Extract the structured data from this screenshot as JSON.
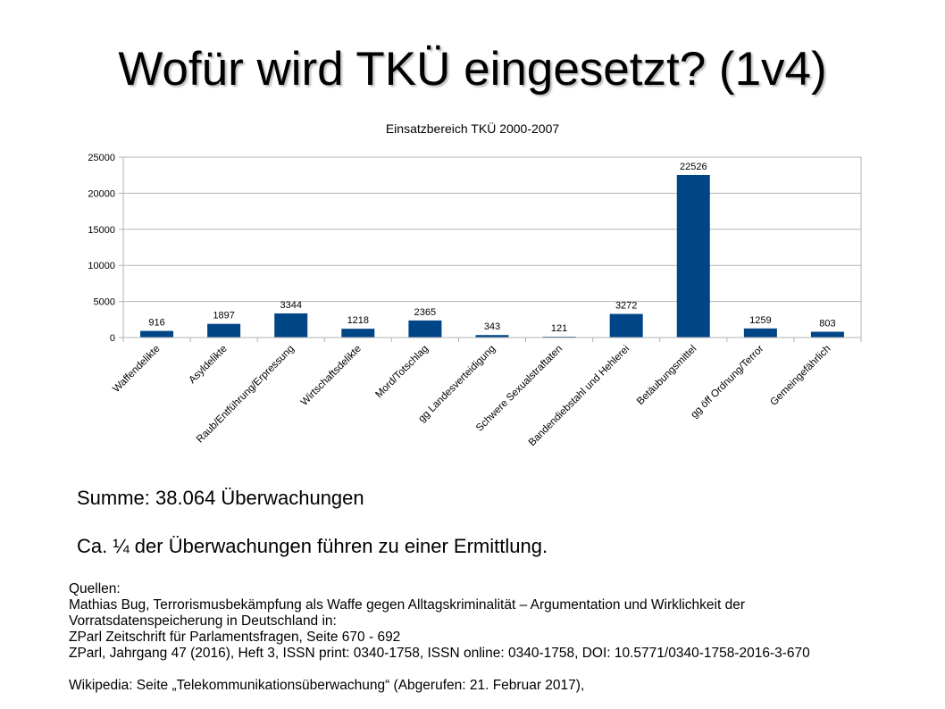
{
  "slide": {
    "title": "Wofür wird TKÜ eingesetzt? (1v4)",
    "summary": "Summe: 38.064 Überwachungen",
    "note": "Ca. ¼ der Überwachungen führen zu einer Ermittlung."
  },
  "sources": {
    "heading": "Quellen:",
    "lines": [
      "Mathias Bug, Terrorismusbekämpfung als Waffe gegen Alltagskriminalität – Argumentation und Wirklichkeit der",
      "Vorratsdatenspeicherung in Deutschland in:",
      "ZParl Zeitschrift für Parlamentsfragen, Seite 670 - 692",
      "ZParl, Jahrgang 47 (2016), Heft 3, ISSN print: 0340-1758, ISSN online: 0340-1758, DOI:  10.5771/0340-1758-2016-3-670"
    ],
    "wiki": "Wikipedia: Seite „Telekommunikationsüberwachung“ (Abgerufen: 21. Februar 2017),"
  },
  "chart_data": {
    "type": "bar",
    "title": "Einsatzbereich TKÜ 2000-2007",
    "categories": [
      "Waffendelikte",
      "Asyldelikte",
      "Raub/Entführung/Erpressung",
      "Wirtschaftsdelikte",
      "Mord/Totschlag",
      "gg Landesverteidigung",
      "Schwere Sexualstraftaten",
      "Bandendiebstahl und Hehlerei",
      "Betäubungsmittel",
      "gg öff Ordnung/Terror",
      "Gemeingefährlich"
    ],
    "values": [
      916,
      1897,
      3344,
      1218,
      2365,
      343,
      121,
      3272,
      22526,
      1259,
      803
    ],
    "ylim": [
      0,
      25000
    ],
    "yticks": [
      0,
      5000,
      10000,
      15000,
      20000,
      25000
    ],
    "grid": true,
    "legend": "none",
    "bar_color": "#004586"
  }
}
